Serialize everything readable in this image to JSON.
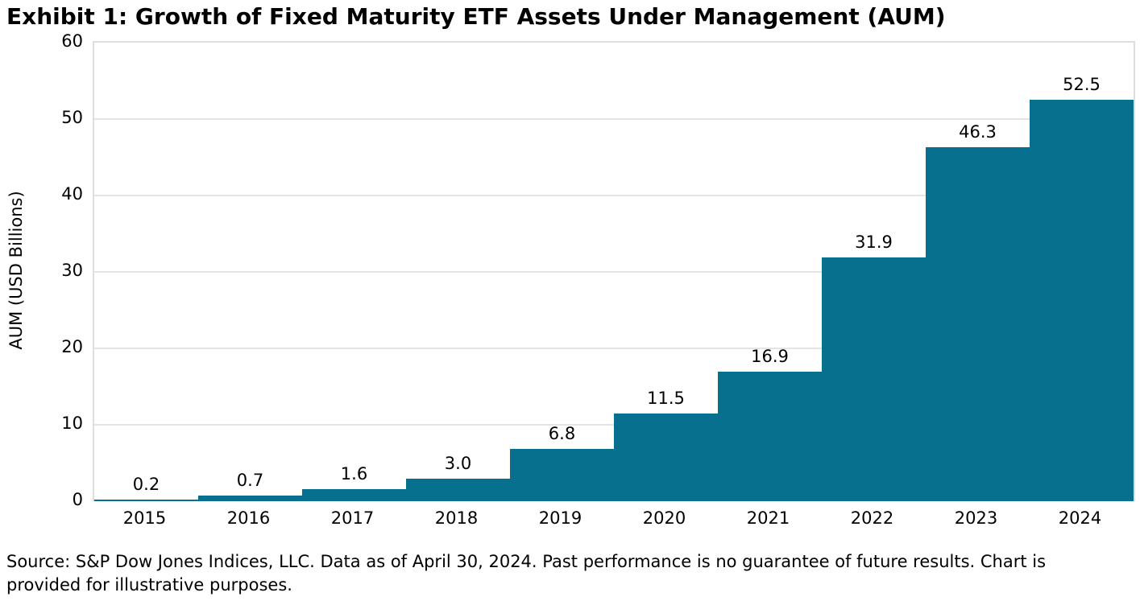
{
  "page": {
    "title": "Exhibit 1: Growth of Fixed Maturity ETF Assets Under Management (AUM)",
    "source_note": "Source: S&P Dow Jones Indices, LLC. Data as of April 30, 2024. Past performance is no guarantee of future results. Chart is provided for illustrative purposes."
  },
  "colors": {
    "bar": "#06708E",
    "gridline": "#E4E4E4",
    "plot_border": "#DEDEDE",
    "text": "#000000",
    "background": "#FFFFFF"
  },
  "chart_data": {
    "type": "bar",
    "title": "Exhibit 1: Growth of Fixed Maturity ETF Assets Under Management (AUM)",
    "categories": [
      "2015",
      "2016",
      "2017",
      "2018",
      "2019",
      "2020",
      "2021",
      "2022",
      "2023",
      "2024"
    ],
    "values": [
      0.2,
      0.7,
      1.6,
      3.0,
      6.8,
      11.5,
      16.9,
      31.9,
      46.3,
      52.5
    ],
    "data_labels": [
      "0.2",
      "0.7",
      "1.6",
      "3.0",
      "6.8",
      "11.5",
      "16.9",
      "31.9",
      "46.3",
      "52.5"
    ],
    "xlabel": "",
    "ylabel": "AUM (USD Billions)",
    "ylim": [
      0,
      60
    ],
    "yticks": [
      0,
      10,
      20,
      30,
      40,
      50,
      60
    ],
    "grid": "horizontal",
    "legend": "none",
    "bar_gap": 0
  }
}
